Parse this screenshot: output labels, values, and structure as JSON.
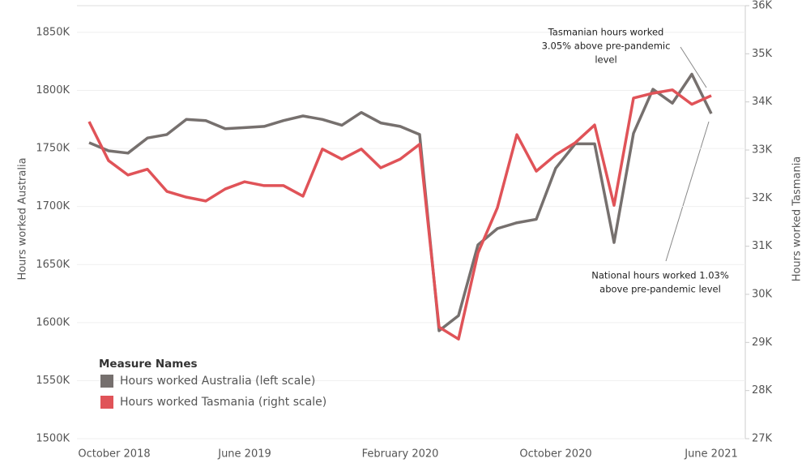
{
  "chart_data": {
    "type": "line",
    "categories": [
      "October 2018",
      null,
      null,
      null,
      null,
      null,
      null,
      null,
      "June 2019",
      null,
      null,
      null,
      null,
      null,
      null,
      null,
      "February 2020",
      null,
      null,
      null,
      null,
      null,
      null,
      null,
      "October 2020",
      null,
      null,
      null,
      null,
      null,
      null,
      null,
      "June 2021"
    ],
    "series": [
      {
        "name": "Hours worked Australia (left scale)",
        "color": "#76706e",
        "values": [
          1755000,
          1748000,
          1746000,
          1759000,
          1762000,
          1775000,
          1774000,
          1767000,
          1768000,
          1769000,
          1774000,
          1778000,
          1775000,
          1770000,
          1781000,
          1772000,
          1769000,
          1762000,
          1593000,
          1606000,
          1667000,
          1681000,
          1686000,
          1689000,
          1733000,
          1754000,
          1754000,
          1669000,
          1763000,
          1801000,
          1789000,
          1814000,
          1780000
        ]
      },
      {
        "name": "Hours worked Tasmania (right scale)",
        "color": "#e05358",
        "axis": "y2",
        "values": [
          33590,
          32780,
          32480,
          32600,
          32140,
          32020,
          31940,
          32190,
          32340,
          32260,
          32260,
          32040,
          33020,
          32810,
          33020,
          32630,
          32810,
          33120,
          29320,
          29070,
          30860,
          31800,
          33320,
          32560,
          32900,
          33150,
          33520,
          31850,
          34080,
          34180,
          34250,
          33950,
          34130
        ]
      }
    ],
    "y_label": "Hours worked Australia",
    "y2_label": "Hours worked Tasmania",
    "ylim": [
      1500000,
      1873000
    ],
    "yticks": [
      {
        "value": 1500000,
        "label": "1500K"
      },
      {
        "value": 1550000,
        "label": "1550K"
      },
      {
        "value": 1600000,
        "label": "1600K"
      },
      {
        "value": 1650000,
        "label": "1650K"
      },
      {
        "value": 1700000,
        "label": "1700K"
      },
      {
        "value": 1750000,
        "label": "1750K"
      },
      {
        "value": 1800000,
        "label": "1800K"
      },
      {
        "value": 1850000,
        "label": "1850K"
      }
    ],
    "y2lim": [
      27000,
      36000
    ],
    "y2ticks": [
      {
        "value": 27000,
        "label": "27K"
      },
      {
        "value": 28000,
        "label": "28K"
      },
      {
        "value": 29000,
        "label": "29K"
      },
      {
        "value": 30000,
        "label": "30K"
      },
      {
        "value": 31000,
        "label": "31K"
      },
      {
        "value": 32000,
        "label": "32K"
      },
      {
        "value": 33000,
        "label": "33K"
      },
      {
        "value": 34000,
        "label": "34K"
      },
      {
        "value": 35000,
        "label": "35K"
      },
      {
        "value": 36000,
        "label": "36K"
      }
    ],
    "grid": true,
    "legend_title": "Measure Names",
    "legend": "lower left",
    "annotations": [
      [
        "Tasmanian hours worked",
        "3.05% above pre-pandemic",
        "level"
      ],
      [
        "National hours worked 1.03%",
        "above pre-pandemic level"
      ]
    ]
  }
}
